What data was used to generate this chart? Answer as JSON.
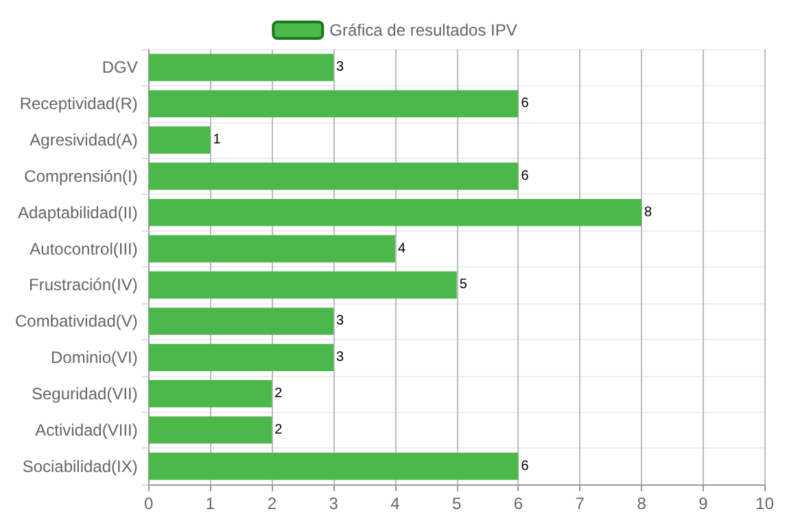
{
  "chart_data": {
    "type": "bar",
    "orientation": "horizontal",
    "categories": [
      "DGV",
      "Receptividad(R)",
      "Agresividad(A)",
      "Comprensión(I)",
      "Adaptabilidad(II)",
      "Autocontrol(III)",
      "Frustración(IV)",
      "Combatividad(V)",
      "Dominio(VI)",
      "Seguridad(VII)",
      "Actividad(VIII)",
      "Sociabilidad(IX)"
    ],
    "series": [
      {
        "name": "Gráfica de resultados IPV",
        "color": "#4cb84c",
        "values": [
          3,
          6,
          1,
          6,
          8,
          4,
          5,
          3,
          3,
          2,
          2,
          6
        ]
      }
    ],
    "xlim": [
      0,
      10
    ],
    "xticks": [
      0,
      1,
      2,
      3,
      4,
      5,
      6,
      7,
      8,
      9,
      10
    ],
    "grid": true,
    "legend": "top",
    "data_labels": true
  }
}
